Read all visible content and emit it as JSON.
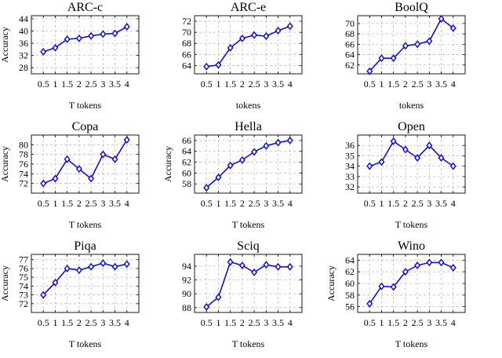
{
  "chart_data": [
    {
      "type": "line",
      "title": "ARC-c",
      "xlabel": "T tokens",
      "ylabel": "Accuracy",
      "categories": [
        "0.5",
        "1",
        "1.5",
        "2",
        "2.5",
        "3",
        "3.5",
        "4"
      ],
      "values": [
        33.2,
        34.5,
        37.3,
        37.6,
        38.4,
        39.0,
        39.2,
        41.4
      ],
      "ylim": [
        26,
        45
      ],
      "yticks": [
        28,
        32,
        36,
        40,
        44
      ],
      "ytick_labels": [
        "28",
        "32",
        "36",
        "40",
        "44"
      ],
      "color": "#1010e0"
    },
    {
      "type": "line",
      "title": "ARC-e",
      "xlabel": "tokens",
      "ylabel": "",
      "categories": [
        "0.5",
        "1",
        "1.5",
        "2",
        "2.5",
        "3",
        "3.5",
        "4"
      ],
      "values": [
        63.8,
        64.1,
        67.2,
        68.9,
        69.5,
        69.3,
        70.3,
        71.1
      ],
      "ylim": [
        62.5,
        73
      ],
      "yticks": [
        64,
        66,
        68,
        70,
        72
      ],
      "ytick_labels": [
        "64",
        "66",
        "68",
        "70",
        "72"
      ],
      "color": "#1010e0"
    },
    {
      "type": "line",
      "title": "BoolQ",
      "xlabel": "tokens",
      "ylabel": "",
      "categories": [
        "0.5",
        "1",
        "1.5",
        "2",
        "2.5",
        "3",
        "3.5",
        "4"
      ],
      "values": [
        60.8,
        63.3,
        63.3,
        65.7,
        66.0,
        66.6,
        70.9,
        69.1
      ],
      "ylim": [
        60.3,
        71.5
      ],
      "yticks": [
        62,
        64,
        66,
        68,
        70
      ],
      "ytick_labels": [
        "62",
        "64",
        "66",
        "68",
        "70"
      ],
      "color": "#1010e0"
    },
    {
      "type": "line",
      "title": "Copa",
      "xlabel": "T tokens",
      "ylabel": "Accuracy",
      "categories": [
        "0.5",
        "1",
        "1.5",
        "2",
        "2.5",
        "3",
        "3.5",
        "4"
      ],
      "values": [
        72,
        73,
        77,
        75,
        73,
        78,
        77,
        81
      ],
      "ylim": [
        70,
        82
      ],
      "yticks": [
        72,
        74,
        76,
        78,
        80
      ],
      "ytick_labels": [
        "72",
        "74",
        "76",
        "78",
        "80"
      ],
      "color": "#1010e0"
    },
    {
      "type": "line",
      "title": "Hella",
      "xlabel": "T tokens",
      "ylabel": "Accuracy",
      "categories": [
        "0.5",
        "1",
        "1.5",
        "2",
        "2.5",
        "3",
        "3.5",
        "4"
      ],
      "values": [
        57.3,
        59.2,
        61.4,
        62.4,
        63.9,
        65.0,
        65.6,
        66.0
      ],
      "ylim": [
        56.3,
        67
      ],
      "yticks": [
        58,
        60,
        62,
        64,
        66
      ],
      "ytick_labels": [
        "58",
        "60",
        "62",
        "64",
        "66"
      ],
      "color": "#1010e0"
    },
    {
      "type": "line",
      "title": "Open",
      "xlabel": "T tokens",
      "ylabel": "",
      "categories": [
        "0.5",
        "1",
        "1.5",
        "2",
        "2.5",
        "3",
        "3.5",
        "4"
      ],
      "values": [
        34.0,
        34.4,
        36.4,
        35.6,
        34.8,
        36.0,
        34.8,
        34.0
      ],
      "ylim": [
        31.4,
        37
      ],
      "yticks": [
        32,
        33,
        34,
        35,
        36
      ],
      "ytick_labels": [
        "32",
        "33",
        "34",
        "35",
        "36"
      ],
      "color": "#1010e0"
    },
    {
      "type": "line",
      "title": "Piqa",
      "xlabel": "T tokens",
      "ylabel": "Accuracy",
      "categories": [
        "0.5",
        "1",
        "1.5",
        "2",
        "2.5",
        "3",
        "3.5",
        "4"
      ],
      "values": [
        73.0,
        74.4,
        76.0,
        75.8,
        76.2,
        76.6,
        76.2,
        76.5
      ],
      "ylim": [
        71,
        77.6
      ],
      "yticks": [
        72,
        73,
        74,
        75,
        76,
        77
      ],
      "ytick_labels": [
        "72",
        "73",
        "74",
        "75",
        "76",
        "77"
      ],
      "color": "#1010e0"
    },
    {
      "type": "line",
      "title": "Sciq",
      "xlabel": "T tokens",
      "ylabel": "",
      "categories": [
        "0.5",
        "1",
        "1.5",
        "2",
        "2.5",
        "3",
        "3.5",
        "4"
      ],
      "values": [
        88.1,
        89.5,
        94.6,
        94.1,
        93.1,
        94.2,
        93.9,
        93.9
      ],
      "ylim": [
        87.3,
        95.7
      ],
      "yticks": [
        88,
        90,
        92,
        94
      ],
      "ytick_labels": [
        "88",
        "90",
        "92",
        "94"
      ],
      "color": "#1010e0"
    },
    {
      "type": "line",
      "title": "Wino",
      "xlabel": "T tokens",
      "ylabel": "Accuracy",
      "categories": [
        "0.5",
        "1",
        "1.5",
        "2",
        "2.5",
        "3",
        "3.5",
        "4"
      ],
      "values": [
        56.5,
        59.5,
        59.4,
        62.0,
        63.1,
        63.6,
        63.6,
        62.7
      ],
      "ylim": [
        55,
        65
      ],
      "yticks": [
        56,
        58,
        60,
        62,
        64
      ],
      "ytick_labels": [
        "56",
        "58",
        "60",
        "62",
        "64"
      ],
      "color": "#1010e0"
    }
  ]
}
